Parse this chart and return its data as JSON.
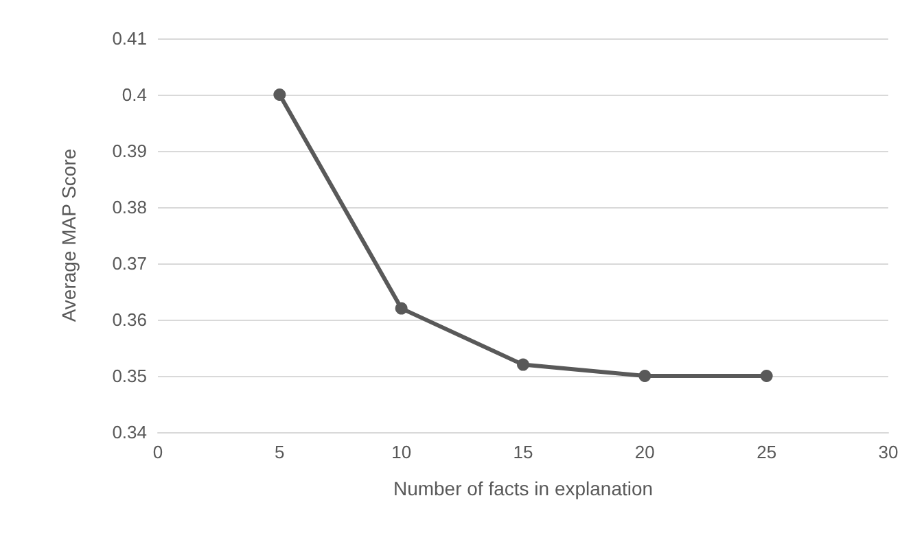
{
  "chart_data": {
    "type": "line",
    "xlabel": "Number of facts in explanation",
    "ylabel": "Average MAP Score",
    "x": [
      5,
      10,
      15,
      20,
      25
    ],
    "series": [
      {
        "color": "#595959",
        "values": [
          0.4,
          0.362,
          0.352,
          0.35,
          0.35
        ]
      }
    ],
    "xlim": [
      0,
      30
    ],
    "xticks": [
      0,
      5,
      10,
      15,
      20,
      25,
      30
    ],
    "ylim": [
      0.34,
      0.41
    ],
    "yticks": [
      0.34,
      0.35,
      0.36,
      0.37,
      0.38,
      0.39,
      0.4,
      0.41
    ],
    "grid": "y",
    "marker": "circle",
    "line_style": "solid"
  }
}
